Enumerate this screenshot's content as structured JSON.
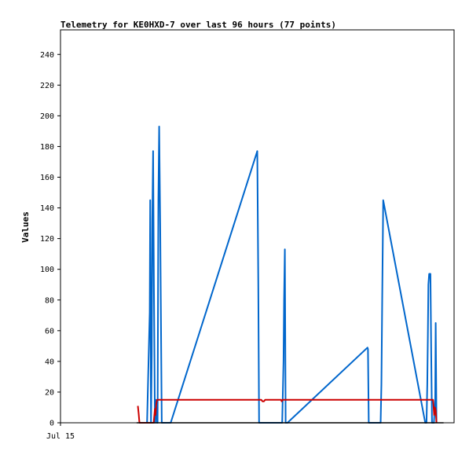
{
  "chart_data": {
    "type": "line",
    "title": "Telemetry for KE0HXD-7 over last 96 hours (77 points)",
    "ylabel": "Values",
    "xlabel": "",
    "ylim": [
      0,
      256
    ],
    "y_ticks": [
      0,
      20,
      40,
      60,
      80,
      100,
      120,
      140,
      160,
      180,
      200,
      220,
      240
    ],
    "x_ticks": [
      "Jul 15"
    ],
    "grid": false,
    "series": [
      {
        "color": "#0066cc",
        "x": [
          33.0,
          34.0,
          34.2,
          34.5,
          34.8,
          35.0,
          35.3,
          35.6,
          36.0,
          36.3,
          36.7,
          37.0,
          37.3,
          37.6,
          38.0,
          38.3,
          38.6,
          39.0,
          39.2,
          39.5,
          39.8,
          40.0,
          40.2,
          40.5,
          40.8,
          41.0,
          41.5,
          42.0,
          75.0,
          75.4,
          75.7,
          76.0,
          84.5,
          85.0,
          85.2,
          85.5,
          85.8,
          86.0,
          86.3,
          86.5,
          117.0,
          117.2,
          117.5,
          122.0,
          122.3,
          122.6,
          123.0,
          139.0,
          139.5,
          139.8,
          140.0,
          140.2,
          140.5,
          141.0,
          141.3,
          141.6,
          142.0,
          142.3,
          142.8,
          143.0,
          143.3
        ],
        "y": [
          0,
          72,
          145,
          0,
          45,
          132,
          177,
          90,
          0,
          15,
          0,
          0,
          145,
          193,
          130,
          65,
          0,
          0,
          0,
          0,
          0,
          0,
          0,
          0,
          0,
          0,
          0,
          0,
          177,
          90,
          0,
          0,
          0,
          40,
          80,
          113,
          0,
          0,
          0,
          0,
          49,
          48,
          0,
          0,
          25,
          80,
          145,
          0,
          0,
          25,
          55,
          90,
          97,
          97,
          45,
          0,
          0,
          0,
          15,
          65,
          0
        ]
      },
      {
        "color": "#cc0000",
        "x": [
          29.5,
          29.8,
          30.1,
          30.5,
          31.0,
          31.5,
          33.0,
          35.5,
          36.0,
          36.2,
          36.5,
          36.8,
          37.0,
          38.0,
          40.0,
          50.0,
          60.0,
          70.0,
          75.0,
          76.5,
          77.0,
          77.5,
          78.0,
          80.0,
          84.0,
          84.3,
          84.6,
          85.0,
          90.0,
          100.0,
          110.0,
          117.0,
          122.0,
          130.0,
          139.0,
          141.0,
          142.0,
          142.4,
          142.7,
          143.0,
          143.3
        ],
        "y": [
          11,
          6,
          0,
          0,
          0,
          0,
          0,
          0,
          9,
          5,
          12,
          15,
          15,
          15,
          15,
          15,
          15,
          15,
          15,
          15,
          14,
          14,
          15,
          15,
          15,
          14,
          15,
          15,
          15,
          15,
          15,
          15,
          15,
          15,
          15,
          15,
          15,
          5,
          10,
          8,
          0
        ]
      },
      {
        "color": "#000000",
        "x": [
          29.0,
          146.0
        ],
        "y": [
          0,
          0
        ]
      }
    ]
  }
}
